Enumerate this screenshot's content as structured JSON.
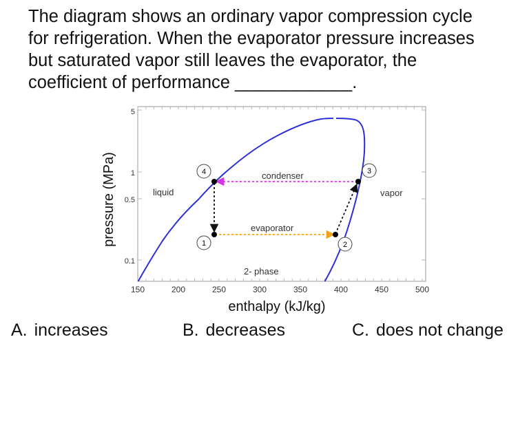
{
  "question": {
    "lines": [
      "The diagram shows an ordinary vapor compression cycle",
      "for refrigeration. When the evaporator pressure increases",
      "but saturated vapor still leaves the evaporator, the",
      "coefficient of performance ____________."
    ]
  },
  "diagram": {
    "xlabel": "enthalpy (kJ/kg)",
    "ylabel": "pressure (MPa)",
    "x_ticks": [
      "150",
      "200",
      "250",
      "300",
      "350",
      "400",
      "450",
      "500"
    ],
    "y_ticks": [
      "0.1",
      "0.5",
      "1",
      "5"
    ],
    "xlim": [
      150,
      500
    ],
    "ylim": [
      0.08,
      5
    ],
    "y_scale": "log",
    "region_labels": {
      "liquid": "liquid",
      "vapor": "vapor",
      "two_phase": "2- phase"
    },
    "process_labels": {
      "condenser": "condenser",
      "evaporator": "evaporator"
    },
    "state_points": [
      {
        "id": "1",
        "h": 245,
        "p": 0.22
      },
      {
        "id": "2",
        "h": 392,
        "p": 0.22
      },
      {
        "id": "3",
        "h": 422,
        "p": 0.78
      },
      {
        "id": "4",
        "h": 245,
        "p": 0.78
      }
    ],
    "colors": {
      "saturation_dome": "#2a2fd6",
      "condenser_arrow": "#d633e8",
      "evaporator_arrow": "#f2a21b",
      "other_arrows": "#111111",
      "frame": "#9a9a9a"
    }
  },
  "choices": [
    {
      "letter": "A.",
      "text": "increases"
    },
    {
      "letter": "B.",
      "text": "decreases"
    },
    {
      "letter": "C.",
      "text": "does not change"
    }
  ]
}
